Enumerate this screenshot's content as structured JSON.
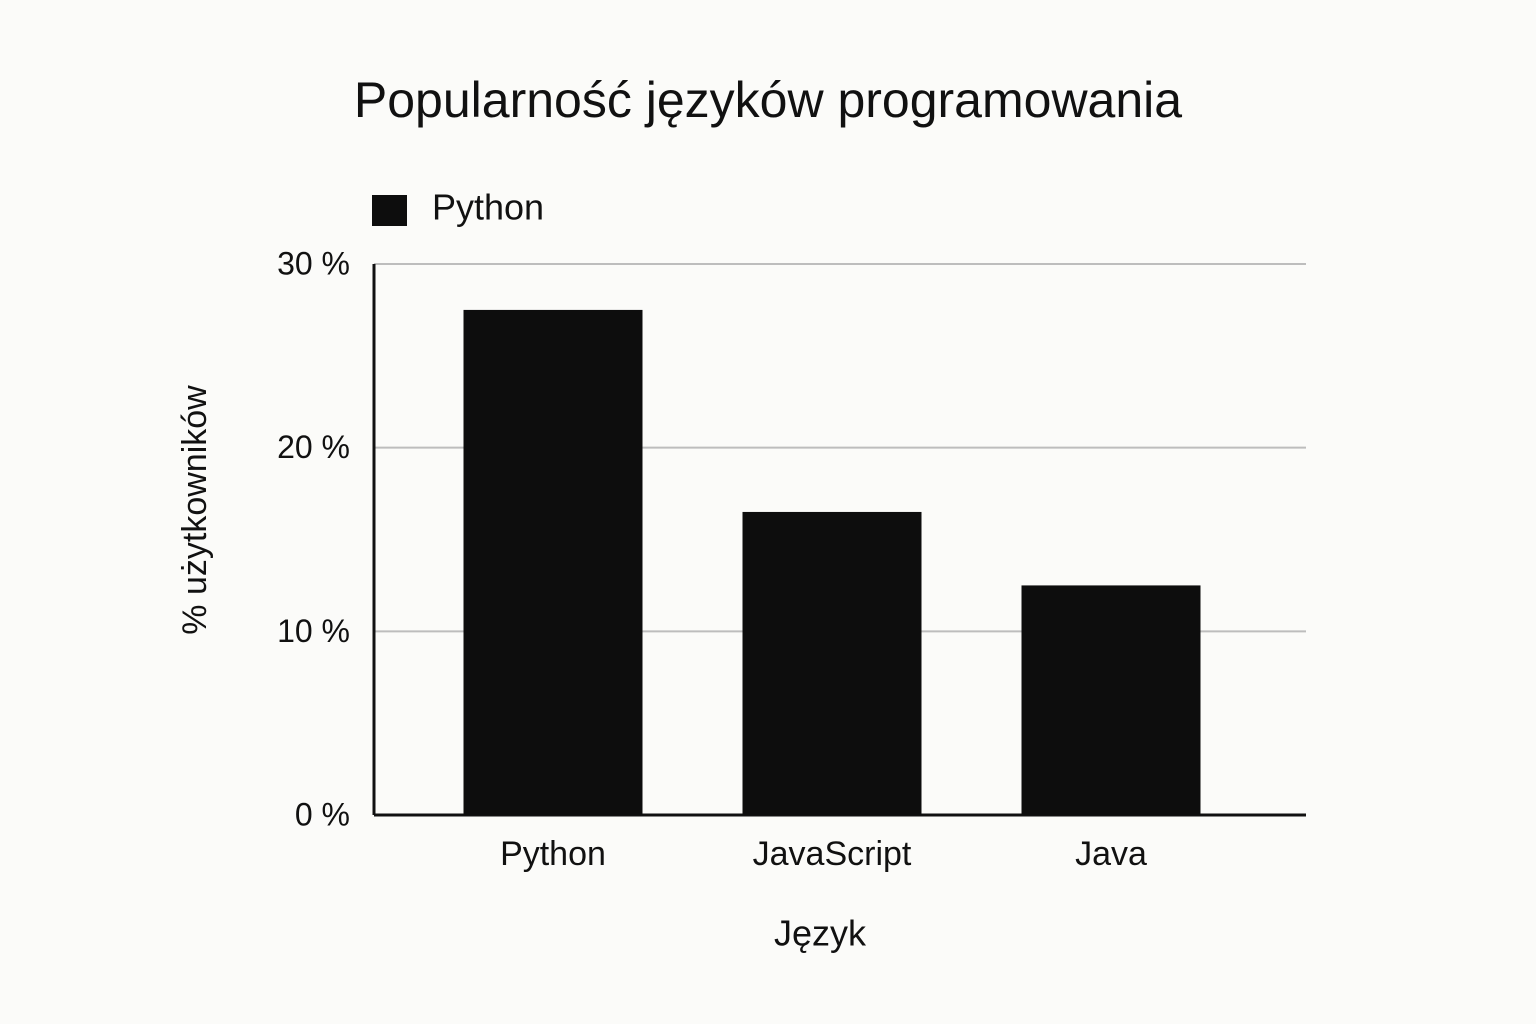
{
  "chart_data": {
    "type": "bar",
    "title": "Popularność języków programowania",
    "x_label": "Język",
    "y_label": "% użytkowników",
    "categories": [
      "Python",
      "JavaScript",
      "Java"
    ],
    "series": [
      {
        "name": "Python",
        "color": "#0d0d0d",
        "values": [
          27.5,
          16.5,
          12.5
        ]
      }
    ],
    "ylim": [
      0,
      30
    ],
    "yticks": [
      {
        "value": 0,
        "label": "0 %"
      },
      {
        "value": 10,
        "label": "10 %"
      },
      {
        "value": 20,
        "label": "20 %"
      },
      {
        "value": 30,
        "label": "30 %"
      }
    ],
    "grid": true,
    "legend": "top-left"
  }
}
